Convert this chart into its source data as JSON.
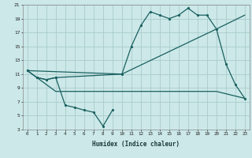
{
  "xlabel": "Humidex (Indice chaleur)",
  "ylabel": "",
  "background_color": "#cce8e8",
  "line_color": "#1a6060",
  "grid_color": "#aacccc",
  "xlim": [
    -0.5,
    23.5
  ],
  "ylim": [
    3,
    21
  ],
  "yticks": [
    3,
    5,
    7,
    9,
    11,
    13,
    15,
    17,
    19,
    21
  ],
  "xticks": [
    0,
    1,
    2,
    3,
    4,
    5,
    6,
    7,
    8,
    9,
    10,
    11,
    12,
    13,
    14,
    15,
    16,
    17,
    18,
    19,
    20,
    21,
    22,
    23
  ],
  "s1x": [
    0,
    1,
    2,
    3,
    4,
    5,
    6,
    7,
    8,
    9
  ],
  "s1y": [
    11.5,
    10.5,
    10.2,
    10.5,
    6.5,
    6.2,
    5.8,
    5.5,
    3.5,
    5.8
  ],
  "s2x": [
    0,
    1,
    2,
    3,
    10,
    11,
    12,
    13,
    14,
    15,
    16,
    17,
    18,
    19,
    20,
    21,
    22,
    23
  ],
  "s2y": [
    11.5,
    10.5,
    10.2,
    10.5,
    11.0,
    15.0,
    18.0,
    20.0,
    19.5,
    19.0,
    19.5,
    20.5,
    19.5,
    19.5,
    17.5,
    12.5,
    9.5,
    7.5
  ],
  "s3x": [
    0,
    10,
    20,
    23
  ],
  "s3y": [
    11.5,
    11.0,
    17.5,
    19.5
  ],
  "s4x": [
    1,
    3,
    10,
    20,
    23
  ],
  "s4y": [
    10.5,
    8.5,
    8.5,
    8.5,
    7.5
  ]
}
